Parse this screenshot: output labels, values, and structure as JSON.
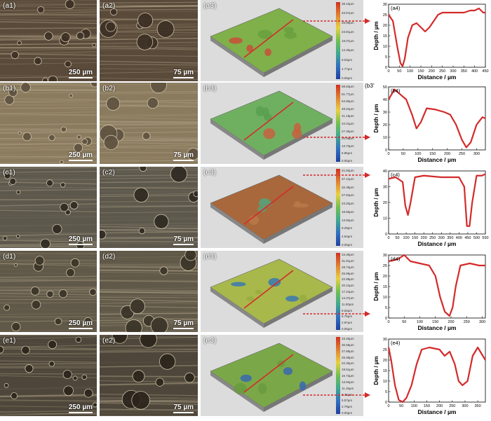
{
  "colors": {
    "profile": "#d42a2a",
    "arrow": "#d42a2a"
  },
  "rows": [
    {
      "id": "a",
      "labels": [
        "(a1)",
        "(a2)",
        "(a3)",
        "(a4)"
      ],
      "scale1": "250 µm",
      "scale2": "75 µm",
      "colorbar": [
        "38.10µm",
        "33.57µm",
        "28.99µm",
        "23.81µm",
        "19.07µm",
        "14.30µm",
        "9.53µm",
        "4.77µm",
        "0.00µm"
      ],
      "plot": {
        "xlim": [
          0,
          450
        ],
        "ylim": [
          0,
          30
        ],
        "xticks": [
          0,
          50,
          100,
          150,
          200,
          250,
          300,
          350,
          400,
          450
        ],
        "yticks": [
          0,
          5,
          10,
          15,
          20,
          25,
          30
        ],
        "xlabel": "Distance / µm",
        "ylabel": "Depth / µm",
        "x": [
          0,
          20,
          40,
          55,
          65,
          75,
          90,
          110,
          130,
          150,
          170,
          190,
          210,
          230,
          250,
          300,
          350,
          380,
          400,
          420,
          440,
          450
        ],
        "y": [
          25,
          22,
          10,
          2,
          0.5,
          4,
          14,
          20,
          21,
          19,
          17,
          19,
          22,
          25,
          26,
          26,
          26,
          27,
          27,
          28,
          26,
          26
        ]
      }
    },
    {
      "id": "b",
      "labels": [
        "(b1)",
        "(b2)",
        "(b3)",
        "(b4)"
      ],
      "scale1": "250 µm",
      "scale2": "75 µm",
      "colorbar": [
        "68.63µm",
        "61.77µm",
        "54.90µm",
        "48.04µm",
        "41.18µm",
        "34.31µm",
        "27.45µm",
        "20.59µm",
        "13.73µm",
        "6.86µm",
        "0.00µm"
      ],
      "plot": {
        "xlim": [
          0,
          330
        ],
        "ylim": [
          0,
          50
        ],
        "xticks": [
          0,
          50,
          100,
          150,
          200,
          250,
          300
        ],
        "yticks": [
          0,
          10,
          20,
          30,
          40,
          50
        ],
        "xlabel": "Distance / µm",
        "ylabel": "Depth / µm",
        "x": [
          0,
          20,
          40,
          60,
          80,
          95,
          110,
          130,
          160,
          190,
          210,
          230,
          250,
          265,
          280,
          300,
          320,
          330
        ],
        "y": [
          40,
          48,
          44,
          40,
          28,
          17,
          22,
          33,
          32,
          30,
          28,
          20,
          8,
          2,
          6,
          20,
          26,
          25
        ]
      }
    },
    {
      "id": "c",
      "labels": [
        "(c1)",
        "(c2)",
        "(c3)",
        "(c4)"
      ],
      "scale1": "250 µm",
      "scale2": "75 µm",
      "colorbar": [
        "41.82µm",
        "37.12µm",
        "32.48µm",
        "27.84µm",
        "23.20µm",
        "18.56µm",
        "13.92µm",
        "9.28µm",
        "4.64µm",
        "0.00µm"
      ],
      "plot": {
        "xlim": [
          0,
          550
        ],
        "ylim": [
          0,
          40
        ],
        "xticks": [
          0,
          50,
          100,
          150,
          200,
          250,
          300,
          350,
          400,
          450,
          500,
          550
        ],
        "yticks": [
          0,
          10,
          20,
          30,
          40
        ],
        "xlabel": "Distance / µm",
        "ylabel": "Depth / µm",
        "x": [
          0,
          40,
          80,
          95,
          110,
          125,
          150,
          200,
          300,
          400,
          430,
          445,
          460,
          475,
          500,
          530,
          550
        ],
        "y": [
          35,
          36,
          33,
          18,
          12,
          20,
          36,
          37,
          36,
          36,
          30,
          5,
          5,
          20,
          37,
          37,
          38
        ]
      }
    },
    {
      "id": "d",
      "labels": [
        "(d1)",
        "(d2)",
        "(d3)",
        "(d4)"
      ],
      "scale1": "250 µm",
      "scale2": "75 µm",
      "colorbar": [
        "34.49µm",
        "31.81µm",
        "28.74µm",
        "25.86µm",
        "22.99µm",
        "20.12µm",
        "17.24µm",
        "14.37µm",
        "11.50µm",
        "8.62µm",
        "5.75µm",
        "2.87µm",
        "0.00µm"
      ],
      "plot": {
        "xlim": [
          0,
          310
        ],
        "ylim": [
          0,
          30
        ],
        "xticks": [
          0,
          50,
          100,
          150,
          200,
          250,
          300
        ],
        "yticks": [
          0,
          5,
          10,
          15,
          20,
          25,
          30
        ],
        "xlabel": "Distance / µm",
        "ylabel": "Depth / µm",
        "x": [
          0,
          30,
          50,
          70,
          100,
          130,
          150,
          165,
          180,
          195,
          205,
          215,
          230,
          260,
          290,
          310
        ],
        "y": [
          27,
          28,
          30,
          27,
          26,
          25,
          20,
          10,
          3,
          1,
          5,
          15,
          25,
          26,
          25,
          25
        ]
      }
    },
    {
      "id": "e",
      "labels": [
        "(e1)",
        "(e2)",
        "(e3)",
        "(e4)"
      ],
      "scale1": "250 µm",
      "scale2": "75 µm",
      "colorbar": [
        "33.49µm",
        "30.59µm",
        "27.89µm",
        "25.08µm",
        "22.30µm",
        "19.51µm",
        "16.73µm",
        "13.94µm",
        "11.15µm",
        "8.36µm",
        "5.57µm",
        "2.79µm",
        "0.00µm"
      ],
      "plot": {
        "xlim": [
          0,
          380
        ],
        "ylim": [
          0,
          30
        ],
        "xticks": [
          0,
          50,
          100,
          150,
          200,
          250,
          300,
          350
        ],
        "yticks": [
          0,
          5,
          10,
          15,
          20,
          25,
          30
        ],
        "xlabel": "Distance / µm",
        "ylabel": "Depth / µm",
        "x": [
          0,
          10,
          25,
          40,
          55,
          70,
          90,
          110,
          130,
          160,
          200,
          220,
          240,
          260,
          275,
          290,
          310,
          330,
          350,
          370,
          380
        ],
        "y": [
          26,
          20,
          8,
          1,
          0,
          2,
          8,
          18,
          25,
          26,
          25,
          22,
          24,
          18,
          10,
          8,
          10,
          22,
          26,
          22,
          20
        ]
      }
    }
  ],
  "extra_label": "(b3'",
  "chart_data": [
    {
      "type": "line",
      "title": "(a4)",
      "xlabel": "Distance / µm",
      "ylabel": "Depth / µm",
      "xlim": [
        0,
        450
      ],
      "ylim": [
        0,
        30
      ]
    },
    {
      "type": "line",
      "title": "(b4)",
      "xlabel": "Distance / µm",
      "ylabel": "Depth / µm",
      "xlim": [
        0,
        330
      ],
      "ylim": [
        0,
        50
      ]
    },
    {
      "type": "line",
      "title": "(c4)",
      "xlabel": "Distance / µm",
      "ylabel": "Depth / µm",
      "xlim": [
        0,
        550
      ],
      "ylim": [
        0,
        40
      ]
    },
    {
      "type": "line",
      "title": "(d4)",
      "xlabel": "Distance / µm",
      "ylabel": "Depth / µm",
      "xlim": [
        0,
        310
      ],
      "ylim": [
        0,
        30
      ]
    },
    {
      "type": "line",
      "title": "(e4)",
      "xlabel": "Distance / µm",
      "ylabel": "Depth / µm",
      "xlim": [
        0,
        380
      ],
      "ylim": [
        0,
        30
      ]
    }
  ]
}
